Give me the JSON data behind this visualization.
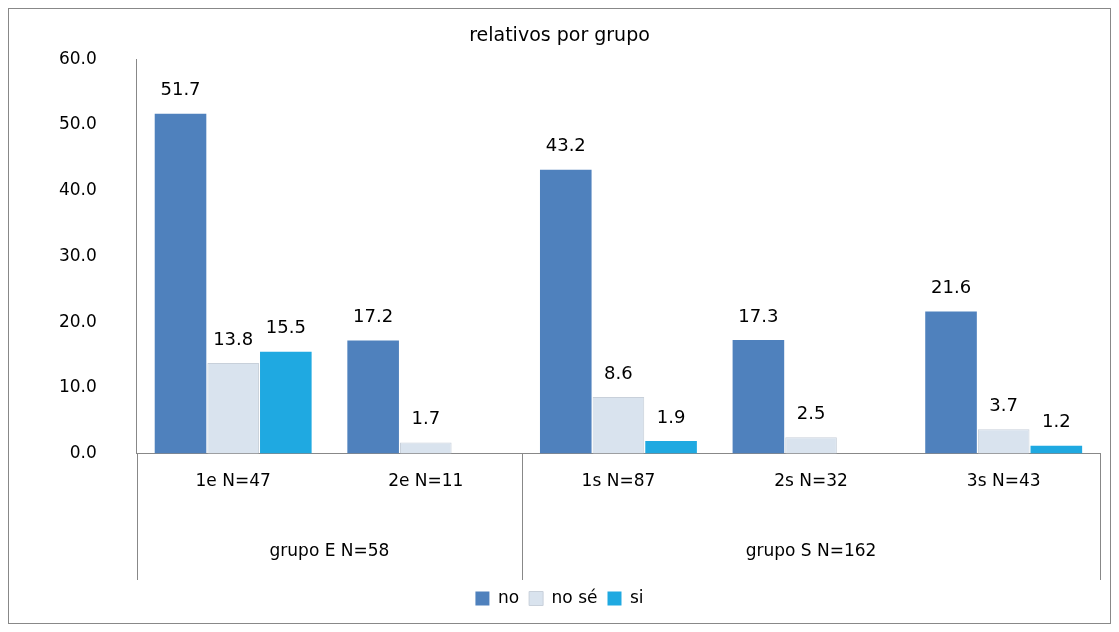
{
  "chart_data": {
    "type": "bar",
    "title": "relativos por grupo",
    "categories": [
      "1e N=47",
      "2e N=11",
      "1s N=87",
      "2s N=32",
      "3s N=43"
    ],
    "series": [
      {
        "name": "no",
        "color": "#4f81bd",
        "values": [
          51.7,
          17.2,
          43.2,
          17.3,
          21.6
        ]
      },
      {
        "name": "no sé",
        "color": "#d9e3ee",
        "values": [
          13.8,
          1.7,
          8.6,
          2.5,
          3.7
        ]
      },
      {
        "name": "si",
        "color": "#1fa9e1",
        "values": [
          15.5,
          null,
          1.9,
          null,
          1.2
        ]
      }
    ],
    "ylim": [
      0,
      60
    ],
    "yticks": [
      {
        "value": 0,
        "label": "0.0"
      },
      {
        "value": 10,
        "label": "10.0"
      },
      {
        "value": 20,
        "label": "20.0"
      },
      {
        "value": 30,
        "label": "30.0"
      },
      {
        "value": 40,
        "label": "40.0"
      },
      {
        "value": 50,
        "label": "50.0"
      },
      {
        "value": 60,
        "label": "60.0"
      }
    ],
    "annotations": [
      "grupo E N=58",
      "grupo S N=162"
    ],
    "data_labels": true,
    "grid": false,
    "legend": "bottom"
  }
}
